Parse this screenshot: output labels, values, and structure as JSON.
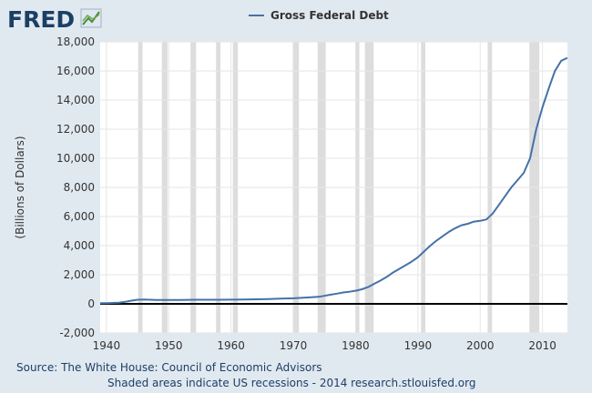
{
  "logo": {
    "text": "FRED",
    "icon": "chart-line-icon"
  },
  "chart_data": {
    "type": "line",
    "legend": {
      "position": "top-center",
      "entries": [
        "Gross Federal Debt"
      ]
    },
    "ylabel": "(Billions of Dollars)",
    "xlabel": "",
    "xlim": [
      1939,
      2014
    ],
    "ylim": [
      -2000,
      18000
    ],
    "x_ticks": [
      1940,
      1950,
      1960,
      1970,
      1980,
      1990,
      2000,
      2010
    ],
    "y_ticks": [
      -2000,
      0,
      2000,
      4000,
      6000,
      8000,
      10000,
      12000,
      14000,
      16000,
      18000
    ],
    "y_tick_labels": [
      "-2,000",
      "0",
      "2,000",
      "4,000",
      "6,000",
      "8,000",
      "10,000",
      "12,000",
      "14,000",
      "16,000",
      "18,000"
    ],
    "grid": true,
    "series": [
      {
        "name": "Gross Federal Debt",
        "color": "#4572a7",
        "x": [
          1939,
          1940,
          1941,
          1942,
          1943,
          1944,
          1945,
          1946,
          1947,
          1948,
          1949,
          1950,
          1952,
          1954,
          1956,
          1958,
          1960,
          1962,
          1964,
          1966,
          1968,
          1970,
          1972,
          1974,
          1975,
          1976,
          1977,
          1978,
          1979,
          1980,
          1981,
          1982,
          1983,
          1984,
          1985,
          1986,
          1987,
          1988,
          1989,
          1990,
          1991,
          1992,
          1993,
          1994,
          1995,
          1996,
          1997,
          1998,
          1999,
          2000,
          2001,
          2002,
          2003,
          2004,
          2005,
          2006,
          2007,
          2008,
          2009,
          2010,
          2011,
          2012,
          2013,
          2014
        ],
        "values": [
          50,
          50,
          60,
          80,
          140,
          220,
          280,
          300,
          280,
          270,
          270,
          270,
          270,
          280,
          280,
          280,
          290,
          300,
          310,
          330,
          360,
          380,
          430,
          480,
          550,
          630,
          700,
          780,
          830,
          900,
          1000,
          1150,
          1380,
          1600,
          1850,
          2150,
          2400,
          2650,
          2900,
          3200,
          3600,
          4000,
          4350,
          4650,
          4950,
          5200,
          5400,
          5500,
          5650,
          5700,
          5800,
          6200,
          6800,
          7400,
          8000,
          8500,
          9000,
          10000,
          12000,
          13500,
          14800,
          16000,
          16700,
          16900
        ]
      }
    ],
    "recessions": [
      [
        1945.1,
        1945.8
      ],
      [
        1948.9,
        1949.8
      ],
      [
        1953.5,
        1954.4
      ],
      [
        1957.6,
        1958.3
      ],
      [
        1960.3,
        1961.1
      ],
      [
        1969.9,
        1970.9
      ],
      [
        1973.9,
        1975.2
      ],
      [
        1980.0,
        1980.6
      ],
      [
        1981.5,
        1982.9
      ],
      [
        1990.5,
        1991.2
      ],
      [
        2001.2,
        2001.9
      ],
      [
        2007.9,
        2009.5
      ]
    ],
    "recession_color": "#dddddd",
    "plot_background": "#ffffff"
  },
  "footer": {
    "source": "Source: The White House: Council of Economic Advisors",
    "note": "Shaded areas indicate US recessions - 2014 research.stlouisfed.org"
  }
}
